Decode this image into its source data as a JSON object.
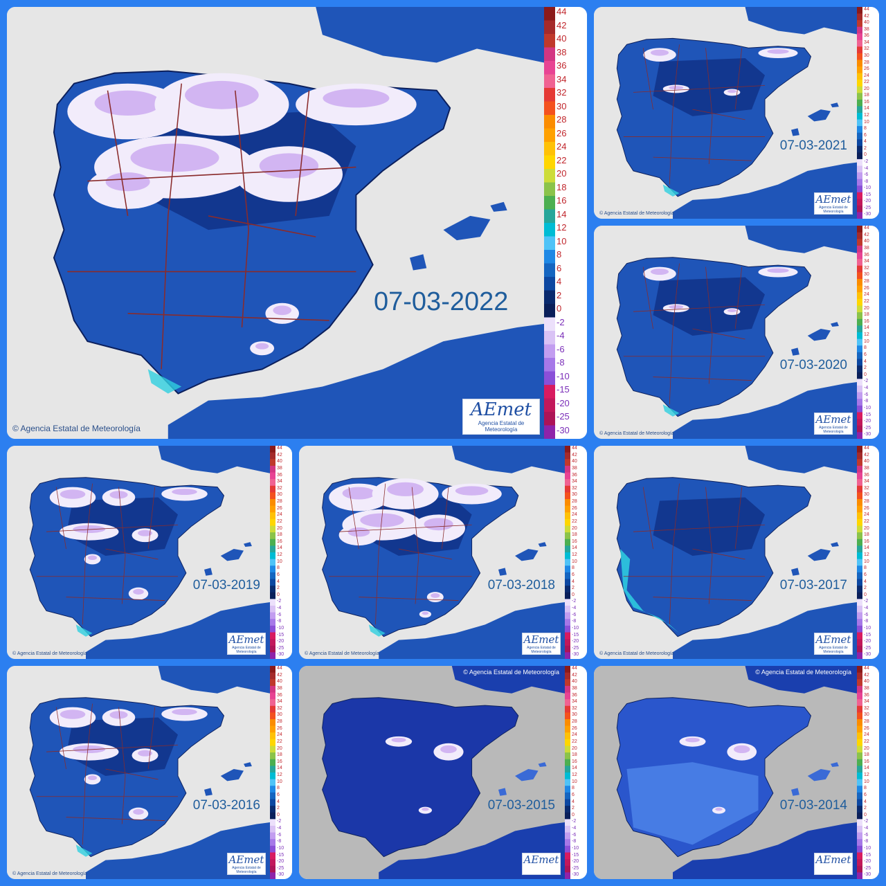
{
  "panels": [
    {
      "date": "07-03-2022",
      "credit": "© Agencia Estatal de Meteorología",
      "logo": "AEmet",
      "logo_sub": "Agencia Estatal de Meteorología"
    },
    {
      "date": "07-03-2021",
      "credit": "© Agencia Estatal de Meteorología",
      "logo": "AEmet",
      "logo_sub": "Agencia Estatal de Meteorología"
    },
    {
      "date": "07-03-2020",
      "credit": "© Agencia Estatal de Meteorología",
      "logo": "AEmet",
      "logo_sub": "Agencia Estatal de Meteorología"
    },
    {
      "date": "07-03-2019",
      "credit": "© Agencia Estatal de Meteorología",
      "logo": "AEmet",
      "logo_sub": "Agencia Estatal de Meteorología"
    },
    {
      "date": "07-03-2018",
      "credit": "© Agencia Estatal de Meteorología",
      "logo": "AEmet",
      "logo_sub": "Agencia Estatal de Meteorología"
    },
    {
      "date": "07-03-2017",
      "credit": "© Agencia Estatal de Meteorología",
      "logo": "AEmet",
      "logo_sub": "Agencia Estatal de Meteorología"
    },
    {
      "date": "07-03-2016",
      "credit": "© Agencia Estatal de Meteorología",
      "logo": "AEmet",
      "logo_sub": "Agencia Estatal de Meteorología"
    },
    {
      "date": "07-03-2015",
      "credit": "© Agencia Estatal de Meteorología",
      "logo": "AEmet",
      "logo_sub": ""
    },
    {
      "date": "07-03-2014",
      "credit": "© Agencia Estatal de Meteorología",
      "logo": "AEmet",
      "logo_sub": ""
    }
  ],
  "legend": {
    "warm_ticks": [
      "44",
      "42",
      "40",
      "38",
      "36",
      "34",
      "32",
      "30",
      "28",
      "26",
      "24",
      "22",
      "20",
      "18",
      "16",
      "14",
      "12",
      "10",
      "8",
      "6",
      "4",
      "2",
      "0"
    ],
    "cold_ticks": [
      "-2",
      "-4",
      "-6",
      "-8",
      "-10",
      "-15",
      "-20",
      "-25",
      "-30"
    ]
  },
  "colors": {
    "frame": "#2c7ff0",
    "sea": "#e6e6e6",
    "land_dark": "#0f2d82",
    "land_mid": "#1f55b8",
    "land_light": "#2f78d8",
    "snow": "#f2ecfb",
    "frost": "#c9a8f0",
    "border_lines": "#8a2b2b",
    "coastal_cyan": "#2fd0e0",
    "france": "#f6edd2"
  }
}
